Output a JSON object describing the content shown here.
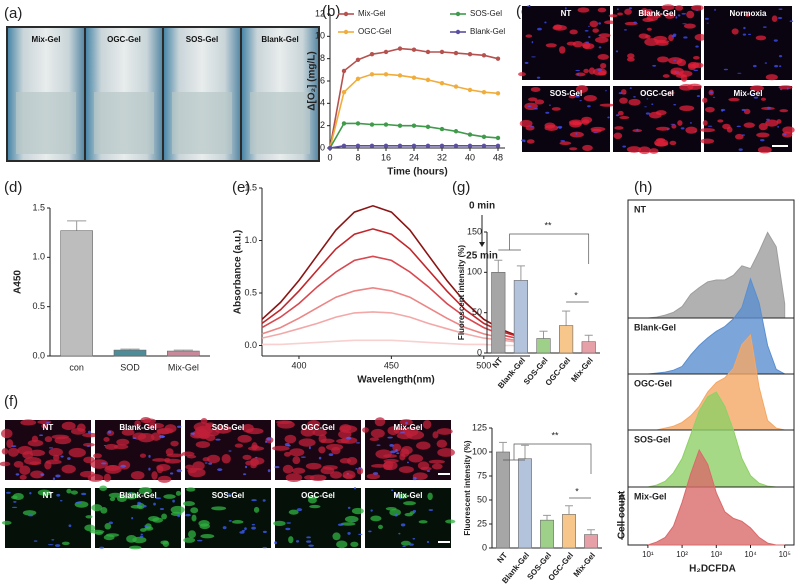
{
  "panel_labels": [
    "(a)",
    "(b)",
    "(c)",
    "(d)",
    "(e)",
    "(g)",
    "(h)",
    "(f)"
  ],
  "images": {
    "a": [
      "Mix-Gel",
      "OGC-Gel",
      "SOS-Gel",
      "Blank-Gel"
    ],
    "c": [
      "NT",
      "Blank-Gel",
      "Normoxia",
      "SOS-Gel",
      "OGC-Gel",
      "Mix-Gel"
    ],
    "f": [
      [
        "NT",
        "Blank-Gel",
        "SOS-Gel",
        "OGC-Gel",
        "Mix-Gel"
      ],
      [
        "NT",
        "Blank-Gel",
        "SOS-Gel",
        "OGC-Gel",
        "Mix-Gel"
      ]
    ]
  },
  "chart_data": [
    {
      "type": "line",
      "xlabel": "Time (hours)",
      "ylabel": "Δ[O₂] (mg/L)",
      "x": [
        0,
        4,
        8,
        12,
        16,
        20,
        24,
        28,
        32,
        36,
        40,
        44,
        48
      ],
      "xlim": [
        0,
        50
      ],
      "xticks": [
        0,
        8,
        16,
        24,
        32,
        40,
        48
      ],
      "ylim": [
        0,
        12
      ],
      "yticks": [
        0,
        2,
        4,
        6,
        8,
        10,
        12
      ],
      "series": [
        {
          "name": "Mix-Gel",
          "color": "#b5524f",
          "values": [
            0,
            6.9,
            7.9,
            8.4,
            8.6,
            8.9,
            8.8,
            8.6,
            8.6,
            8.5,
            8.4,
            8.3,
            8.0
          ]
        },
        {
          "name": "OGC-Gel",
          "color": "#f0ad3c",
          "values": [
            0,
            5.0,
            6.2,
            6.6,
            6.6,
            6.5,
            6.3,
            6.1,
            5.8,
            5.5,
            5.2,
            5.0,
            4.9
          ]
        },
        {
          "name": "SOS-Gel",
          "color": "#3f9a4b",
          "values": [
            0,
            2.2,
            2.2,
            2.1,
            2.1,
            2.0,
            2.0,
            1.9,
            1.7,
            1.5,
            1.2,
            1.0,
            0.9
          ]
        },
        {
          "name": "Blank-Gel",
          "color": "#5b4f9f",
          "values": [
            0,
            0.2,
            0.2,
            0.2,
            0.2,
            0.2,
            0.2,
            0.2,
            0.2,
            0.2,
            0.2,
            0.2,
            0.2
          ]
        }
      ]
    },
    {
      "type": "bar",
      "ylabel": "A450",
      "categories": [
        "con",
        "SOD",
        "Mix-Gel"
      ],
      "values": [
        1.27,
        0.06,
        0.05
      ],
      "errors": [
        0.1,
        0.01,
        0.01
      ],
      "colors": [
        "#bdbdbd",
        "#4e8c98",
        "#c88a9a"
      ],
      "ylim": [
        0,
        1.5
      ],
      "yticks": [
        {
          "value": 0,
          "label": "0.0"
        },
        {
          "value": 0.5,
          "label": "0.5"
        },
        {
          "value": 1,
          "label": "1.0"
        },
        {
          "value": 1.5,
          "label": "1.5"
        }
      ]
    },
    {
      "type": "line",
      "xlabel": "Wavelength(nm)",
      "ylabel": "Absorbance (a.u.)",
      "annotations": [
        "0 min",
        "25 min"
      ],
      "x": [
        380,
        390,
        400,
        410,
        420,
        430,
        440,
        450,
        460,
        470,
        480,
        490,
        500,
        510,
        520
      ],
      "xlim": [
        380,
        525
      ],
      "xticks": [
        400,
        450,
        500
      ],
      "ylim": [
        -0.1,
        1.5
      ],
      "yticks": [
        {
          "value": 0,
          "label": "0.0"
        },
        {
          "value": 0.5,
          "label": "0.5"
        },
        {
          "value": 1,
          "label": "1.0"
        },
        {
          "value": 1.5,
          "label": "1.5"
        }
      ],
      "series": [
        {
          "color": "#8b1414",
          "values": [
            0.25,
            0.41,
            0.62,
            0.86,
            1.1,
            1.27,
            1.33,
            1.27,
            1.1,
            0.86,
            0.62,
            0.41,
            0.25,
            0.15,
            0.08
          ]
        },
        {
          "color": "#c2262b",
          "values": [
            0.21,
            0.34,
            0.52,
            0.72,
            0.92,
            1.06,
            1.11,
            1.06,
            0.92,
            0.72,
            0.52,
            0.34,
            0.21,
            0.13,
            0.08
          ]
        },
        {
          "color": "#d9474f",
          "values": [
            0.17,
            0.27,
            0.4,
            0.56,
            0.7,
            0.81,
            0.85,
            0.81,
            0.7,
            0.56,
            0.4,
            0.27,
            0.17,
            0.1,
            0.06
          ]
        },
        {
          "color": "#ec8585",
          "values": [
            0.11,
            0.17,
            0.26,
            0.36,
            0.46,
            0.52,
            0.55,
            0.52,
            0.46,
            0.36,
            0.26,
            0.17,
            0.11,
            0.07,
            0.04
          ]
        },
        {
          "color": "#f3a8a8",
          "values": [
            0.07,
            0.11,
            0.16,
            0.21,
            0.27,
            0.31,
            0.32,
            0.31,
            0.27,
            0.21,
            0.16,
            0.11,
            0.07,
            0.05,
            0.03
          ]
        },
        {
          "color": "#f8d0d0",
          "values": [
            0.01,
            0.01,
            0.02,
            0.03,
            0.04,
            0.05,
            0.05,
            0.05,
            0.04,
            0.03,
            0.02,
            0.01,
            0.01,
            0,
            0
          ]
        }
      ]
    },
    {
      "type": "bar",
      "ylabel": "Fluorescent intensity (%)",
      "annotations": [
        "**",
        "*"
      ],
      "categories": [
        "NT",
        "Blank-Gel",
        "SOS-Gel",
        "OGC-Gel",
        "Mix-Gel"
      ],
      "values": [
        100,
        90,
        18,
        34,
        14
      ],
      "errors": [
        15,
        18,
        9,
        18,
        8
      ],
      "colors": [
        "#a6a6a6",
        "#b4c3dc",
        "#9fd08a",
        "#f7c68a",
        "#e6a0a8"
      ],
      "ylim": [
        0,
        150
      ],
      "yticks": [
        0,
        50,
        100,
        150
      ]
    },
    {
      "type": "bar",
      "ylabel": "Fluorescent intensity (%)",
      "annotations": [
        "**",
        "*"
      ],
      "categories": [
        "NT",
        "Blank-Gel",
        "SOS-Gel",
        "OGC-Gel",
        "Mix-Gel"
      ],
      "values": [
        100,
        93,
        29,
        35,
        14
      ],
      "errors": [
        10,
        14,
        5,
        9,
        5
      ],
      "colors": [
        "#a6a6a6",
        "#b4c3dc",
        "#9fd08a",
        "#f7c68a",
        "#e6a0a8"
      ],
      "ylim": [
        0,
        125
      ],
      "yticks": [
        0,
        25,
        50,
        75,
        100,
        125
      ]
    },
    {
      "type": "area",
      "xlabel": "H₂DCFDA",
      "ylabel": "Cell count",
      "log_x": true,
      "x": [
        10,
        18,
        32,
        56,
        100,
        178,
        316,
        562,
        1000,
        1778,
        3162,
        5623,
        10000,
        17783,
        31623,
        56234,
        100000
      ],
      "xlim": [
        3,
        200000
      ],
      "xticks": [
        {
          "value": 10,
          "label": "10¹"
        },
        {
          "value": 100,
          "label": "10²"
        },
        {
          "value": 1000,
          "label": "10³"
        },
        {
          "value": 10000,
          "label": "10⁴"
        },
        {
          "value": 100000,
          "label": "10⁵"
        }
      ],
      "ylim": [
        0,
        100
      ],
      "series": [
        {
          "name": "NT",
          "color": "#9e9e9e",
          "values": [
            0,
            1,
            3,
            6,
            12,
            25,
            32,
            38,
            40,
            40,
            45,
            55,
            52,
            70,
            90,
            75,
            15
          ]
        },
        {
          "name": "Blank-Gel",
          "color": "#5b8fd0",
          "values": [
            0,
            1,
            2,
            4,
            8,
            20,
            30,
            38,
            45,
            50,
            58,
            70,
            100,
            75,
            30,
            5,
            0
          ]
        },
        {
          "name": "OGC-Gel",
          "color": "#f4a764",
          "values": [
            0,
            0,
            2,
            4,
            8,
            15,
            25,
            40,
            50,
            55,
            65,
            90,
            100,
            45,
            10,
            2,
            0
          ]
        },
        {
          "name": "SOS-Gel",
          "color": "#8fd066",
          "values": [
            0,
            2,
            6,
            15,
            30,
            55,
            80,
            95,
            100,
            85,
            60,
            30,
            12,
            4,
            1,
            0,
            0
          ]
        },
        {
          "name": "Mix-Gel",
          "color": "#d96a6a",
          "values": [
            0,
            3,
            8,
            20,
            45,
            75,
            100,
            85,
            55,
            35,
            28,
            25,
            18,
            8,
            2,
            0,
            0
          ]
        }
      ]
    }
  ]
}
